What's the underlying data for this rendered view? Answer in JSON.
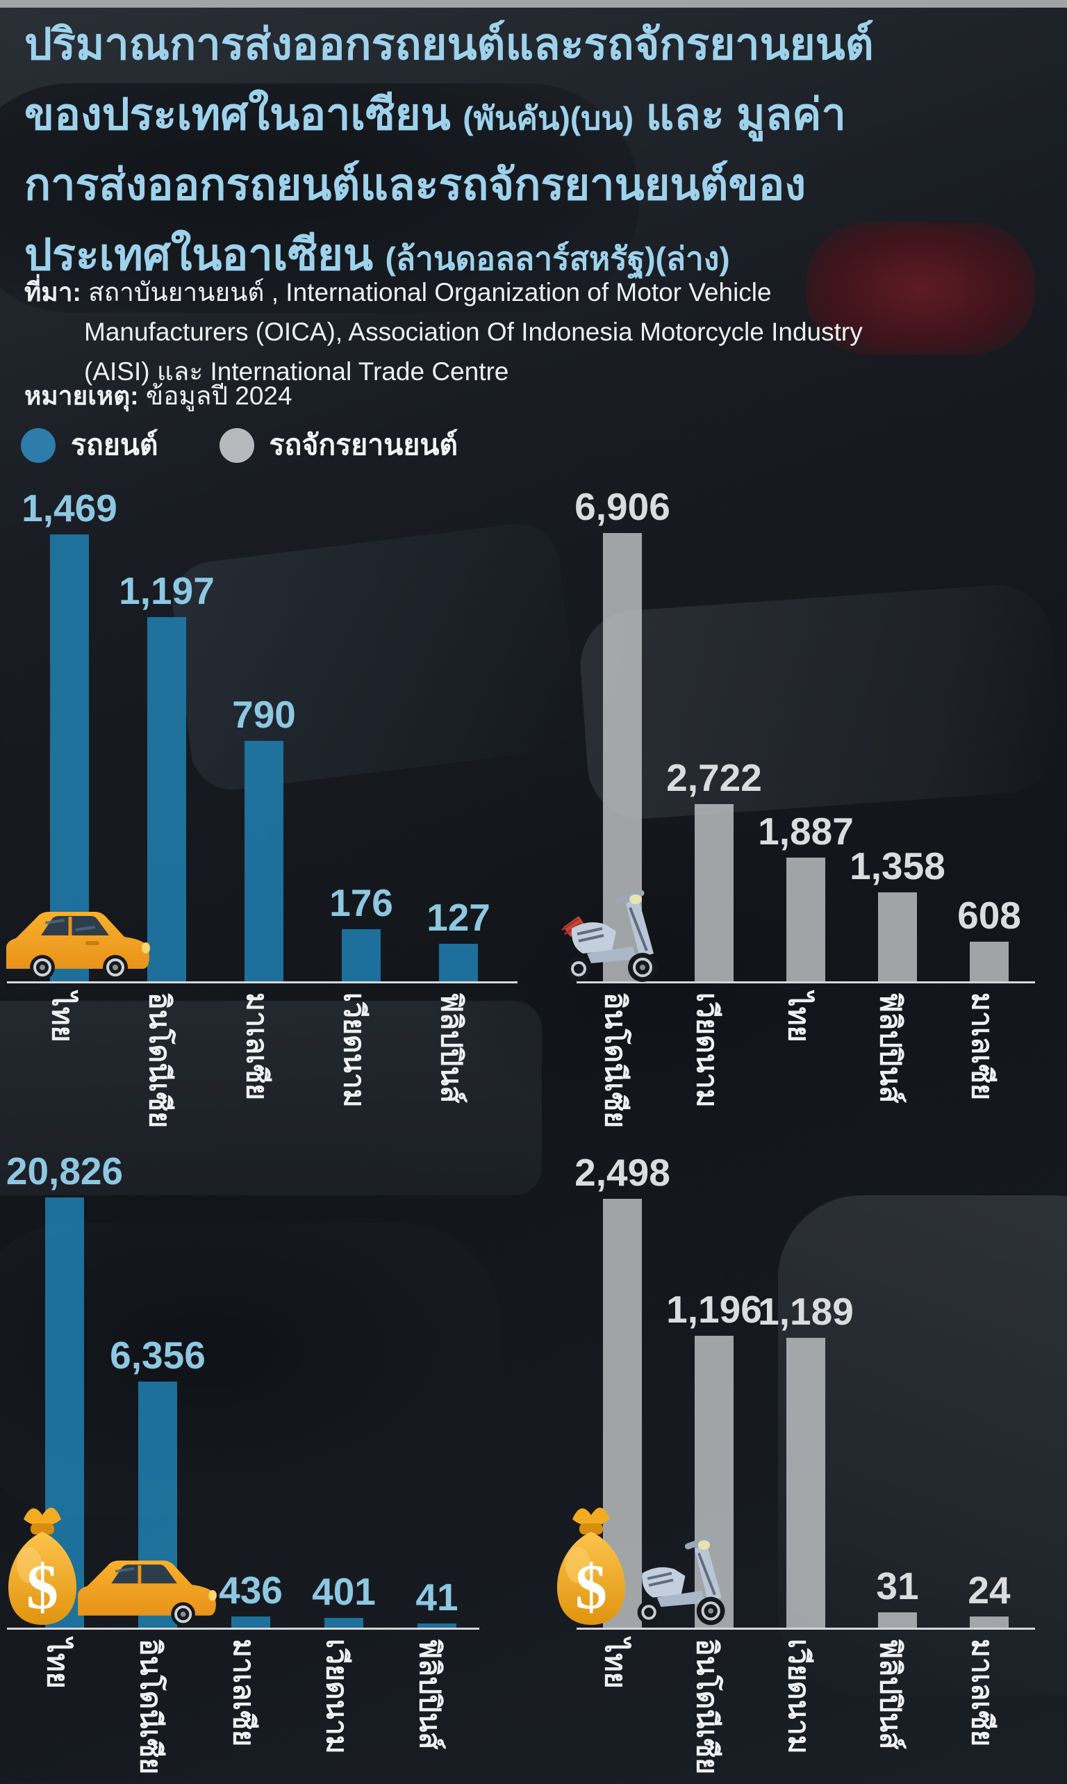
{
  "title": {
    "color": "#9ed2ec",
    "lines": [
      [
        {
          "t": "ปริมาณการส่งออกรถยนต์และรถจักรยานยนต์",
          "s": "big"
        }
      ],
      [
        {
          "t": "ของประเทศในอาเซียน ",
          "s": "big"
        },
        {
          "t": "(พันคัน)(บน)",
          "s": "small"
        },
        {
          "t": " และ มูลค่า",
          "s": "big"
        }
      ],
      [
        {
          "t": "การส่งออกรถยนต์และรถจักรยานยนต์ของ",
          "s": "big"
        }
      ],
      [
        {
          "t": "ประเทศในอาเซียน ",
          "s": "big"
        },
        {
          "t": "(ล้านดอลลาร์สหรัฐ)(ล่าง)",
          "s": "small"
        }
      ]
    ]
  },
  "source": {
    "label": "ที่มา:",
    "lines": [
      "สถาบันยานยนต์ , International Organization of Motor Vehicle",
      "Manufacturers (OICA), Association Of Indonesia Motorcycle Industry",
      "(AISI) และ International Trade Centre"
    ]
  },
  "note": {
    "label": "หมายเหตุ:",
    "text": "ข้อมูลปี 2024"
  },
  "legend": [
    {
      "label": "รถยนต์",
      "color": "#2d7ca9"
    },
    {
      "label": "รถจักรยานยนต์",
      "color": "#b7babd"
    }
  ],
  "chart_data": [
    {
      "type": "bar",
      "name": "export-volume-cars",
      "series": "รถยนต์",
      "unit": "พันคัน",
      "position": "บน-ซ้าย",
      "categories": [
        "ไทย",
        "อินโดนีเซีย",
        "มาเลเซีย",
        "เวียดนาม",
        "ฟิลิปปินส์"
      ],
      "values": [
        1469,
        1197,
        790,
        176,
        127
      ],
      "value_labels": [
        "1,469",
        "1,197",
        "790",
        "176",
        "127"
      ],
      "bar_color": "rgba(30,120,166,0.92)",
      "label_color": "#8ec7e2",
      "icon": "car-icon",
      "year": "2024"
    },
    {
      "type": "bar",
      "name": "export-volume-motorcycles",
      "series": "รถจักรยานยนต์",
      "unit": "พันคัน",
      "position": "บน-ขวา",
      "categories": [
        "อินโดนีเซีย",
        "เวียดนาม",
        "ไทย",
        "ฟิลิปปินส์",
        "มาเลเซีย"
      ],
      "values": [
        6906,
        2722,
        1887,
        1358,
        608
      ],
      "value_labels": [
        "6,906",
        "2,722",
        "1,887",
        "1,358",
        "608"
      ],
      "bar_color": "rgba(186,189,192,0.85)",
      "label_color": "#dadcde",
      "icon": "scooter-icon",
      "year": "2024"
    },
    {
      "type": "bar",
      "name": "export-value-cars",
      "series": "รถยนต์",
      "unit": "ล้านดอลลาร์สหรัฐ",
      "position": "ล่าง-ซ้าย",
      "categories": [
        "ไทย",
        "อินโดนีเซีย",
        "มาเลเซีย",
        "เวียดนาม",
        "ฟิลิปปินส์"
      ],
      "values": [
        20826,
        6356,
        436,
        401,
        41
      ],
      "value_labels": [
        "20,826",
        "6,356",
        "436",
        "401",
        "41"
      ],
      "bar_color": "rgba(30,120,166,0.92)",
      "label_color": "#8ec7e2",
      "icon": "money-bag-icon + car-icon",
      "year": "2024"
    },
    {
      "type": "bar",
      "name": "export-value-motorcycles",
      "series": "รถจักรยานยนต์",
      "unit": "ล้านดอลลาร์สหรัฐ",
      "position": "ล่าง-ขวา",
      "categories": [
        "ไทย",
        "อินโดนีเซีย",
        "เวียดนาม",
        "ฟิลิปปินส์",
        "มาเลเซีย"
      ],
      "values": [
        2498,
        1196,
        1189,
        31,
        24
      ],
      "value_labels": [
        "2,498",
        "1,196",
        "1,189",
        "31",
        "24"
      ],
      "bar_color": "rgba(186,189,192,0.85)",
      "label_color": "#dadcde",
      "icon": "money-bag-icon + scooter-icon",
      "year": "2024"
    }
  ]
}
